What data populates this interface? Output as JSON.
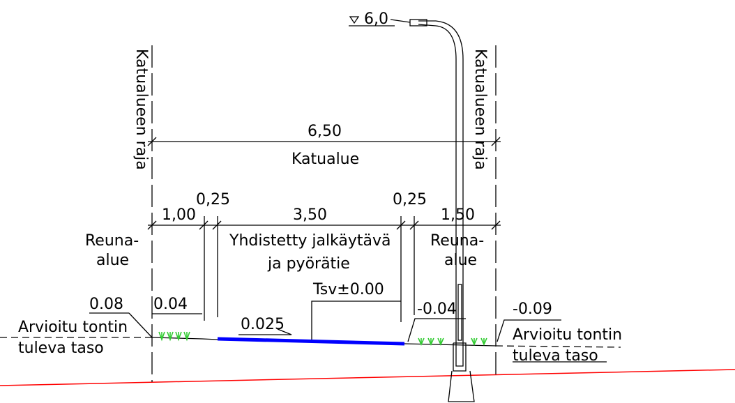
{
  "labels": {
    "pole_height": "6,0",
    "boundary_left": "Katualueen raja",
    "boundary_right": "Katualueen raja",
    "total_width": "6,50",
    "street_area": "Katualue",
    "dim_edge_left": "1,00",
    "dim_gap_left": "0,25",
    "dim_path": "3,50",
    "dim_gap_right": "0,25",
    "dim_edge_right": "1,50",
    "edge_area_left_1": "Reuna-",
    "edge_area_left_2": "alue",
    "edge_area_right_1": "Reuna-",
    "edge_area_right_2": "alue",
    "path_name_1": "Yhdistetty jalkäytävä",
    "path_name_2": "ja pyörätie",
    "level_tsv": "Tsv±0.00",
    "level_left_outer": "0.08",
    "level_left_inner": "0.04",
    "level_right_inner": "-0.04",
    "level_right_outer": "-0.09",
    "slope": "0.025",
    "plot_level_left_1": "Arvioitu tontin",
    "plot_level_left_2": "tuleva taso",
    "plot_level_right_1": "Arvioitu tontin",
    "plot_level_right_2": "tuleva taso"
  },
  "colors": {
    "line": "#000000",
    "path_surface": "#0000ff",
    "grass": "#33cc33",
    "ground": "#ff0000"
  }
}
